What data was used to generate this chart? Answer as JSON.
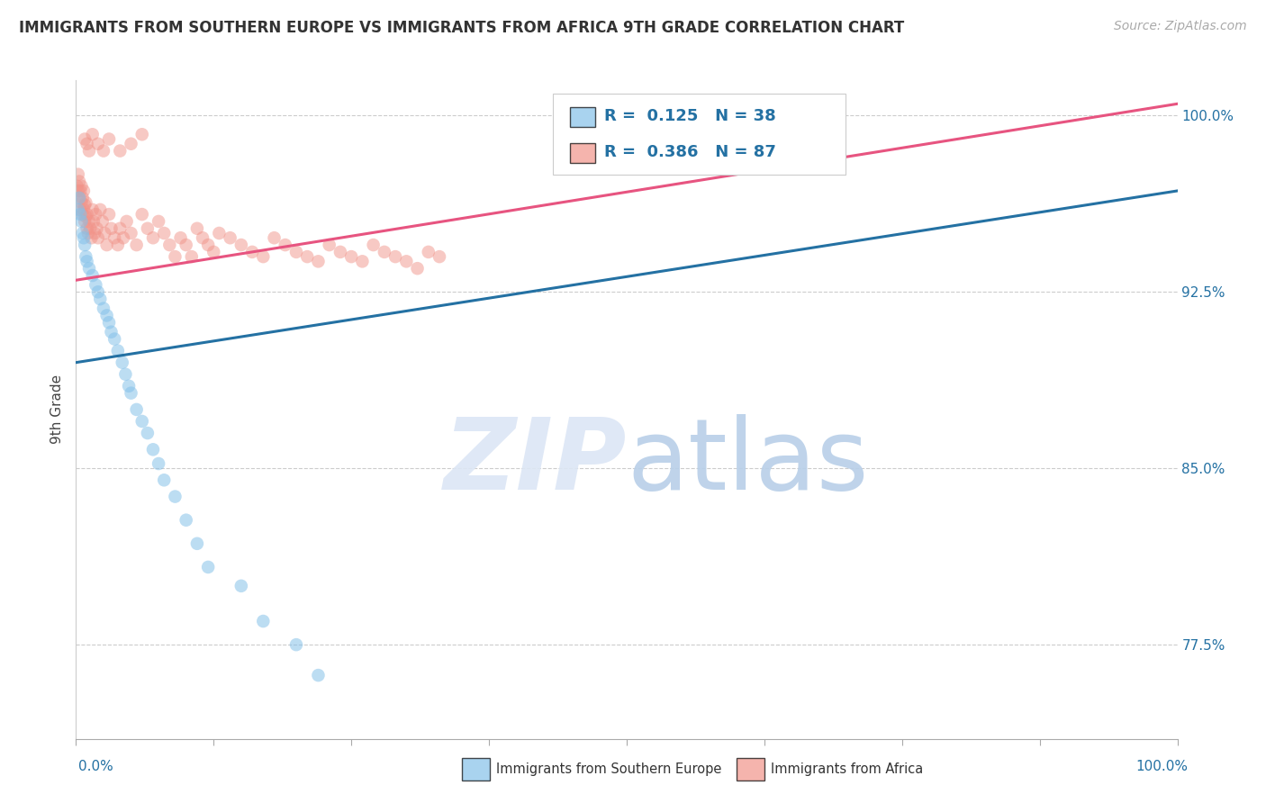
{
  "title": "IMMIGRANTS FROM SOUTHERN EUROPE VS IMMIGRANTS FROM AFRICA 9TH GRADE CORRELATION CHART",
  "source_text": "Source: ZipAtlas.com",
  "xlabel_bottom_left": "0.0%",
  "xlabel_bottom_right": "100.0%",
  "legend_label_blue": "Immigrants from Southern Europe",
  "legend_label_pink": "Immigrants from Africa",
  "ylabel": "9th Grade",
  "right_ytick_vals": [
    0.775,
    0.85,
    0.925,
    1.0
  ],
  "right_ytick_labels": [
    "77.5%",
    "85.0%",
    "92.5%",
    "100.0%"
  ],
  "xlim": [
    0.0,
    1.0
  ],
  "ylim": [
    0.735,
    1.015
  ],
  "blue_R": 0.125,
  "blue_N": 38,
  "pink_R": 0.386,
  "pink_N": 87,
  "blue_color": "#85c1e9",
  "pink_color": "#f1948a",
  "blue_line_color": "#2471a3",
  "pink_line_color": "#e75480",
  "legend_text_color": "#2471a3",
  "watermark_color": "#dce6f5",
  "background_color": "#ffffff",
  "grid_color": "#cccccc",
  "blue_line_x0": 0.0,
  "blue_line_y0": 0.895,
  "blue_line_x1": 1.0,
  "blue_line_y1": 0.968,
  "pink_line_x0": 0.0,
  "pink_line_y0": 0.93,
  "pink_line_x1": 1.0,
  "pink_line_y1": 1.005,
  "blue_scatter_x": [
    0.002,
    0.003,
    0.004,
    0.005,
    0.006,
    0.007,
    0.008,
    0.009,
    0.01,
    0.012,
    0.015,
    0.018,
    0.02,
    0.022,
    0.025,
    0.028,
    0.03,
    0.032,
    0.035,
    0.038,
    0.042,
    0.045,
    0.048,
    0.05,
    0.055,
    0.06,
    0.065,
    0.07,
    0.075,
    0.08,
    0.09,
    0.1,
    0.11,
    0.12,
    0.15,
    0.17,
    0.2,
    0.22
  ],
  "blue_scatter_y": [
    0.96,
    0.965,
    0.958,
    0.955,
    0.95,
    0.948,
    0.945,
    0.94,
    0.938,
    0.935,
    0.932,
    0.928,
    0.925,
    0.922,
    0.918,
    0.915,
    0.912,
    0.908,
    0.905,
    0.9,
    0.895,
    0.89,
    0.885,
    0.882,
    0.875,
    0.87,
    0.865,
    0.858,
    0.852,
    0.845,
    0.838,
    0.828,
    0.818,
    0.808,
    0.8,
    0.785,
    0.775,
    0.762
  ],
  "pink_scatter_x": [
    0.001,
    0.002,
    0.002,
    0.003,
    0.003,
    0.004,
    0.004,
    0.005,
    0.005,
    0.006,
    0.006,
    0.007,
    0.007,
    0.008,
    0.008,
    0.009,
    0.009,
    0.01,
    0.01,
    0.011,
    0.012,
    0.013,
    0.014,
    0.015,
    0.016,
    0.017,
    0.018,
    0.019,
    0.02,
    0.022,
    0.024,
    0.026,
    0.028,
    0.03,
    0.032,
    0.035,
    0.038,
    0.04,
    0.043,
    0.046,
    0.05,
    0.055,
    0.06,
    0.065,
    0.07,
    0.075,
    0.08,
    0.085,
    0.09,
    0.095,
    0.1,
    0.105,
    0.11,
    0.115,
    0.12,
    0.125,
    0.13,
    0.14,
    0.15,
    0.16,
    0.17,
    0.18,
    0.19,
    0.2,
    0.21,
    0.22,
    0.23,
    0.24,
    0.25,
    0.26,
    0.27,
    0.28,
    0.29,
    0.3,
    0.31,
    0.32,
    0.33,
    0.008,
    0.01,
    0.012,
    0.015,
    0.02,
    0.025,
    0.03,
    0.04,
    0.05,
    0.06
  ],
  "pink_scatter_y": [
    0.97,
    0.968,
    0.975,
    0.965,
    0.972,
    0.96,
    0.968,
    0.963,
    0.97,
    0.958,
    0.965,
    0.96,
    0.968,
    0.955,
    0.962,
    0.957,
    0.963,
    0.952,
    0.958,
    0.95,
    0.955,
    0.952,
    0.948,
    0.96,
    0.955,
    0.95,
    0.958,
    0.952,
    0.948,
    0.96,
    0.955,
    0.95,
    0.945,
    0.958,
    0.952,
    0.948,
    0.945,
    0.952,
    0.948,
    0.955,
    0.95,
    0.945,
    0.958,
    0.952,
    0.948,
    0.955,
    0.95,
    0.945,
    0.94,
    0.948,
    0.945,
    0.94,
    0.952,
    0.948,
    0.945,
    0.942,
    0.95,
    0.948,
    0.945,
    0.942,
    0.94,
    0.948,
    0.945,
    0.942,
    0.94,
    0.938,
    0.945,
    0.942,
    0.94,
    0.938,
    0.945,
    0.942,
    0.94,
    0.938,
    0.935,
    0.942,
    0.94,
    0.99,
    0.988,
    0.985,
    0.992,
    0.988,
    0.985,
    0.99,
    0.985,
    0.988,
    0.992
  ],
  "title_fontsize": 12,
  "source_fontsize": 10,
  "tick_fontsize": 11,
  "ylabel_fontsize": 11,
  "legend_fontsize": 13,
  "watermark_fontsize": 80,
  "dot_size": 110
}
